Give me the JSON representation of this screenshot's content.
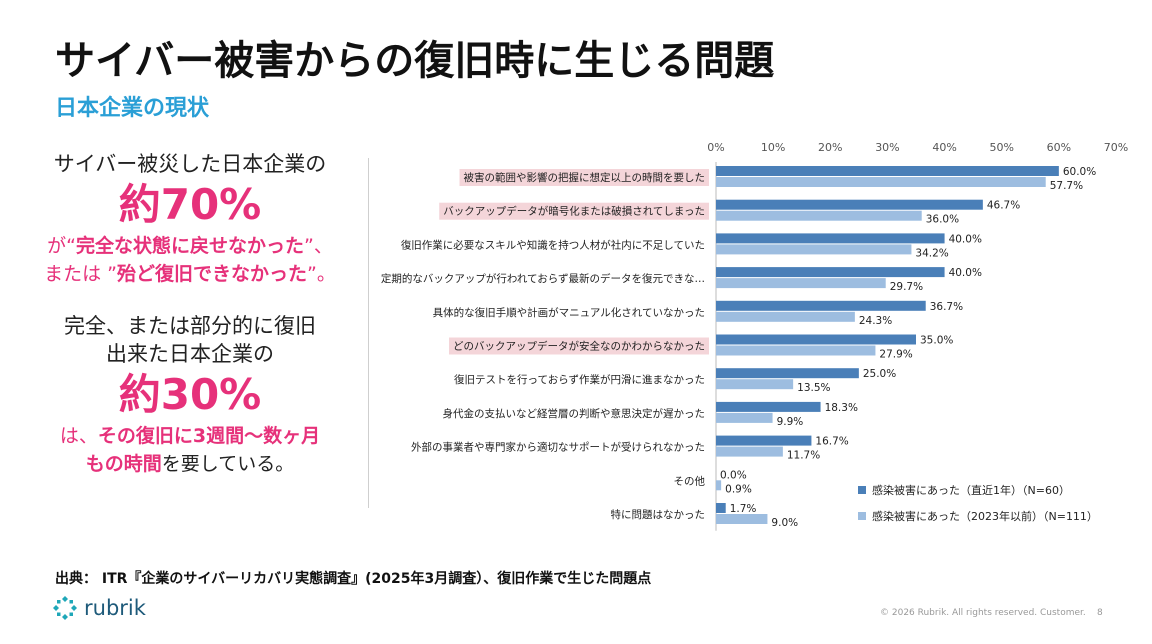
{
  "slide": {
    "title": "サイバー被害からの復旧時に生じる問題",
    "subtitle": "日本企業の現状",
    "page_number": "8",
    "copyright": "© 2026 Rubrik. All rights reserved. Customer."
  },
  "left_panel": {
    "line1": "サイバー被災した日本企業の",
    "stat1": "約70%",
    "line2_prefix": "が“",
    "line2_bold": "完全な状態に戻せなかった",
    "line2_suffix": "”、",
    "line3_prefix": "または ”",
    "line3_bold": "殆ど復旧できなかった",
    "line3_suffix": "”。",
    "line4": "完全、または部分的に復旧",
    "line5": "出来た日本企業の",
    "stat2": "約30%",
    "line6_prefix": "は、",
    "line6_bold": "その復旧に3週間～数ヶ月",
    "line7_bold": "もの時間",
    "line7_suffix": "を要している。"
  },
  "source": "出典： ITR『企業のサイバーリカバリ実態調査』(2025年3月調査）、復旧作業で生じた問題点",
  "logo": {
    "text": "rubrik",
    "icon": "rubrik-logo-icon"
  },
  "colors": {
    "series1": "#4a7fb8",
    "series2": "#9dbde0",
    "highlight": "#f4d5d9",
    "accent_pink": "#e6317a",
    "accent_blue": "#2a9fd6"
  },
  "chart_data": {
    "type": "bar",
    "orientation": "horizontal",
    "xlim": [
      0,
      70
    ],
    "ticks": [
      "0%",
      "10%",
      "20%",
      "30%",
      "40%",
      "50%",
      "60%",
      "70%"
    ],
    "categories": [
      "被害の範囲や影響の把握に想定以上の時間を要した",
      "バックアップデータが暗号化または破損されてしまった",
      "復旧作業に必要なスキルや知識を持つ人材が社内に不足していた",
      "定期的なバックアップが行われておらず最新のデータを復元できな…",
      "具体的な復旧手順や計画がマニュアル化されていなかった",
      "どのバックアップデータが安全なのかわからなかった",
      "復旧テストを行っておらず作業が円滑に進まなかった",
      "身代金の支払いなど経営層の判断や意思決定が遅かった",
      "外部の事業者や専門家から適切なサポートが受けられなかった",
      "その他",
      "特に問題はなかった"
    ],
    "highlighted": [
      true,
      true,
      false,
      false,
      false,
      true,
      false,
      false,
      false,
      false,
      false
    ],
    "series": [
      {
        "name": "感染被害にあった（直近1年）（N=60）",
        "values": [
          60.0,
          46.7,
          40.0,
          40.0,
          36.7,
          35.0,
          25.0,
          18.3,
          16.7,
          0.0,
          1.7
        ],
        "labels": [
          "60.0%",
          "46.7%",
          "40.0%",
          "40.0%",
          "36.7%",
          "35.0%",
          "25.0%",
          "18.3%",
          "16.7%",
          "0.0%",
          "1.7%"
        ]
      },
      {
        "name": "感染被害にあった（2023年以前）（N=111）",
        "values": [
          57.7,
          36.0,
          34.2,
          29.7,
          24.3,
          27.9,
          13.5,
          9.9,
          11.7,
          0.9,
          9.0
        ],
        "labels": [
          "57.7%",
          "36.0%",
          "34.2%",
          "29.7%",
          "24.3%",
          "27.9%",
          "13.5%",
          "9.9%",
          "11.7%",
          "0.9%",
          "9.0%"
        ]
      }
    ],
    "legend_position": "bottom-right"
  }
}
